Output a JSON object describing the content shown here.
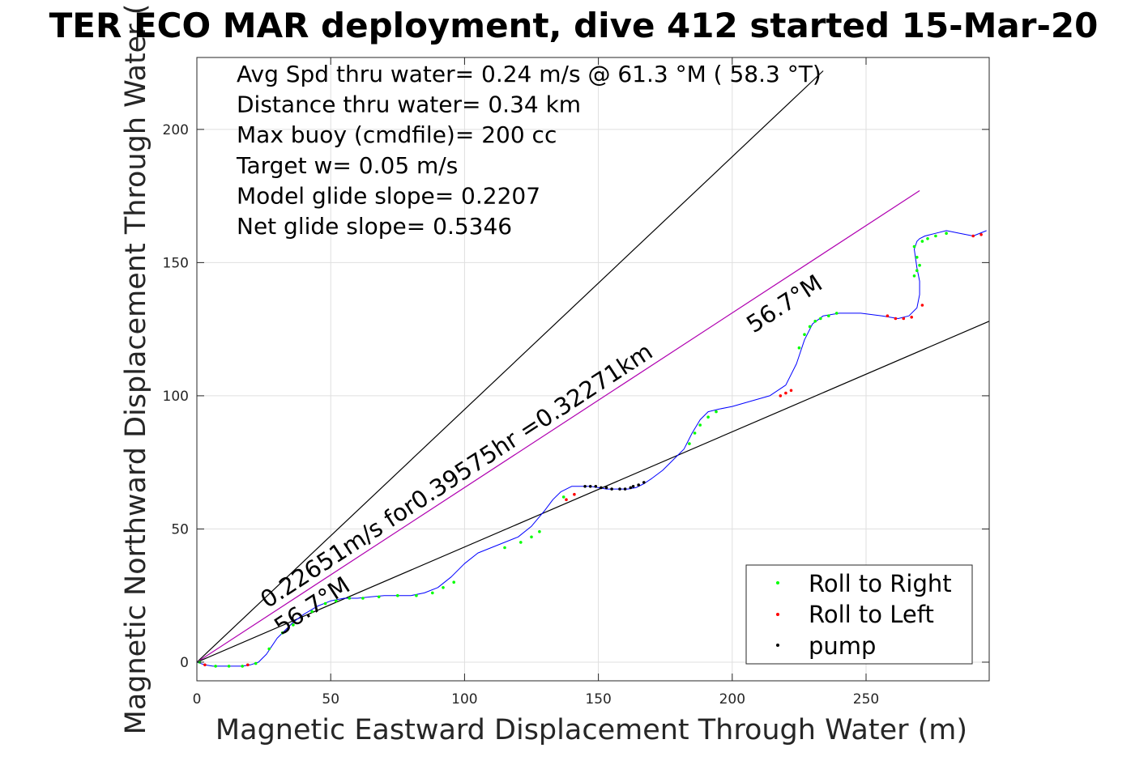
{
  "chart_data": {
    "type": "scatter",
    "title": "TER ECO MAR deployment, dive 412 started 15-Mar-20",
    "xlabel": "Magnetic Eastward Displacement Through Water (m)",
    "ylabel": "Magnetic Northward Displacement Through Water (",
    "xlim": [
      0,
      296
    ],
    "ylim": [
      -7,
      227
    ],
    "xticks": [
      0,
      50,
      100,
      150,
      200,
      250
    ],
    "yticks": [
      0,
      50,
      100,
      150,
      200
    ],
    "grid": true,
    "legend_position": "bottom-right",
    "annotations": [
      "Avg Spd thru water=  0.24 m/s @  61.3 °M ( 58.3 °T)",
      "Distance thru water=  0.34 km",
      "Max buoy (cmdfile)= 200 cc",
      "Target w= 0.05 m/s",
      "Model glide slope= 0.2207",
      "Net glide slope= 0.5346"
    ],
    "rotated_labels": {
      "speed": "0.22651m/s for0.39575hr =0.32271km",
      "heading_upper": "56.7°M",
      "heading_lower": "56.7°M"
    },
    "reference_lines": [
      {
        "name": "upper-bound",
        "color": "#000000",
        "x": [
          0,
          234
        ],
        "y": [
          0,
          222
        ]
      },
      {
        "name": "heading",
        "color": "#b000b0",
        "x": [
          0,
          270
        ],
        "y": [
          0,
          177
        ]
      },
      {
        "name": "lower-bound",
        "color": "#000000",
        "x": [
          0,
          296
        ],
        "y": [
          0,
          128
        ]
      }
    ],
    "track": {
      "color": "#0000ff",
      "x": [
        0,
        3,
        6,
        10,
        14,
        17,
        20,
        23,
        26,
        28,
        30,
        33,
        36,
        40,
        45,
        50,
        55,
        60,
        65,
        70,
        75,
        80,
        85,
        90,
        95,
        100,
        105,
        110,
        115,
        120,
        125,
        130,
        133,
        136,
        140,
        144,
        147,
        150,
        153,
        157,
        161,
        164,
        167,
        170,
        174,
        178,
        182,
        185,
        188,
        191,
        195,
        200,
        207,
        214,
        220,
        224,
        227,
        230,
        234,
        240,
        248,
        256,
        262,
        266,
        269,
        270,
        270,
        269,
        268,
        269,
        270,
        272,
        276,
        280,
        285,
        290,
        295
      ],
      "y": [
        0,
        -1,
        -1.5,
        -1.5,
        -1.5,
        -1.5,
        -1,
        0,
        3,
        6,
        9,
        12,
        15,
        18,
        21,
        23,
        24,
        24,
        24.5,
        25,
        25,
        25,
        26,
        28,
        32,
        37,
        41,
        43,
        45,
        47,
        51,
        57,
        61,
        64,
        66,
        66,
        66,
        65.5,
        65,
        65,
        65,
        65.5,
        67,
        69,
        72,
        76,
        80,
        86,
        91,
        94,
        95,
        96,
        98,
        100,
        104,
        112,
        121,
        127,
        130,
        131,
        131,
        130,
        129,
        130,
        133,
        138,
        143,
        148,
        155,
        158,
        159,
        160,
        161,
        162,
        161,
        160,
        162
      ]
    },
    "series": [
      {
        "name": "Roll to Right",
        "color": "#00ff00",
        "x": [
          1,
          7,
          12,
          17,
          22,
          27,
          32,
          36,
          43,
          48,
          52,
          57,
          62,
          68,
          75,
          82,
          88,
          92,
          96,
          115,
          121,
          125,
          128,
          137,
          184,
          186,
          188,
          191,
          194,
          225,
          227,
          229,
          231,
          233,
          236,
          239,
          268,
          269,
          270,
          269,
          268,
          271,
          273,
          276,
          280
        ],
        "y": [
          0,
          -1.5,
          -1.5,
          -1.5,
          -0.5,
          5,
          11,
          14,
          19,
          22,
          23,
          24,
          24,
          24.5,
          25,
          25,
          26,
          28,
          30,
          43,
          45,
          47,
          49,
          62,
          82,
          86,
          89,
          92,
          94,
          118,
          123,
          126,
          128,
          129,
          130,
          131,
          156,
          152,
          149,
          147,
          145,
          158,
          159,
          160,
          161
        ]
      },
      {
        "name": "Roll to Left",
        "color": "#ff0000",
        "x": [
          3,
          19,
          138,
          141,
          218,
          220,
          222,
          258,
          261,
          264,
          267,
          271,
          290,
          293
        ],
        "y": [
          -1,
          -1,
          61,
          63,
          100,
          101,
          102,
          130,
          129,
          129,
          129.5,
          134,
          160,
          160.5
        ]
      },
      {
        "name": "pump",
        "color": "#000000",
        "x": [
          145,
          147,
          149,
          151,
          153,
          155,
          158,
          160,
          162,
          163,
          165,
          167
        ],
        "y": [
          66,
          66,
          66,
          65.5,
          65.5,
          65,
          65,
          65,
          65.5,
          66,
          66.5,
          67.5
        ]
      }
    ]
  }
}
